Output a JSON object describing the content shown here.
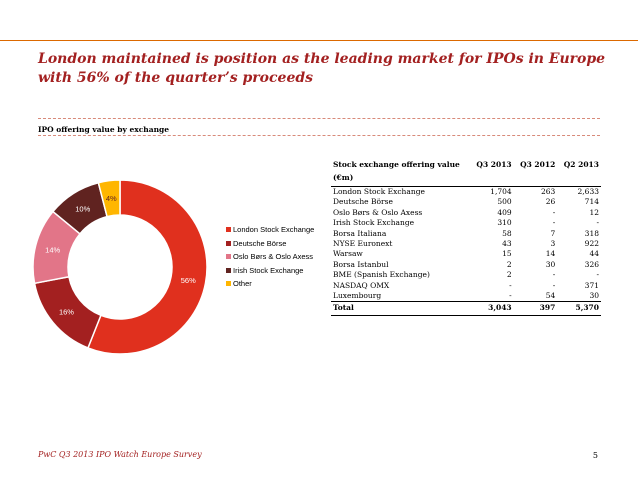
{
  "title": "London maintained is position as the leading market for IPOs in Europe with 56% of the quarter’s proceeds",
  "subtitle": "IPO offering value by exchange",
  "chart_data": {
    "type": "pie",
    "style": "donut",
    "title": "IPO offering value by exchange",
    "categories": [
      "London Stock Exchange",
      "Deutsche Börse",
      "Oslo Børs & Oslo Axess",
      "Irish Stock Exchange",
      "Other"
    ],
    "values": [
      56,
      16,
      14,
      10,
      4
    ],
    "labels": [
      "56%",
      "16%",
      "14%",
      "10%",
      "4%"
    ],
    "colors": [
      "#e0301e",
      "#a32020",
      "#e27588",
      "#602320",
      "#ffb600"
    ],
    "label_colors": [
      "#ffffff",
      "#ffffff",
      "#ffffff",
      "#ffffff",
      "#602320"
    ],
    "legend_position": "right"
  },
  "table": {
    "headers": [
      "Stock exchange offering value (€m)",
      "Q3 2013",
      "Q3 2012",
      "Q2 2013"
    ],
    "rows": [
      [
        "London Stock Exchange",
        "1,704",
        "263",
        "2,633"
      ],
      [
        "Deutsche Börse",
        "500",
        "26",
        "714"
      ],
      [
        "Oslo Børs & Oslo Axess",
        "409",
        "-",
        "12"
      ],
      [
        "Irish Stock Exchange",
        "310",
        "-",
        "-"
      ],
      [
        "Borsa Italiana",
        "58",
        "7",
        "318"
      ],
      [
        "NYSE Euronext",
        "43",
        "3",
        "922"
      ],
      [
        "Warsaw",
        "15",
        "14",
        "44"
      ],
      [
        "Borsa Istanbul",
        "2",
        "30",
        "326"
      ],
      [
        "BME (Spanish Exchange)",
        "2",
        "-",
        "-"
      ],
      [
        "NASDAQ OMX",
        "-",
        "-",
        "371"
      ],
      [
        "Luxembourg",
        "-",
        "54",
        "30"
      ]
    ],
    "total": [
      "Total",
      "3,043",
      "397",
      "5,370"
    ]
  },
  "footer": "PwC Q3 2013 IPO Watch Europe Survey",
  "page_number": "5"
}
